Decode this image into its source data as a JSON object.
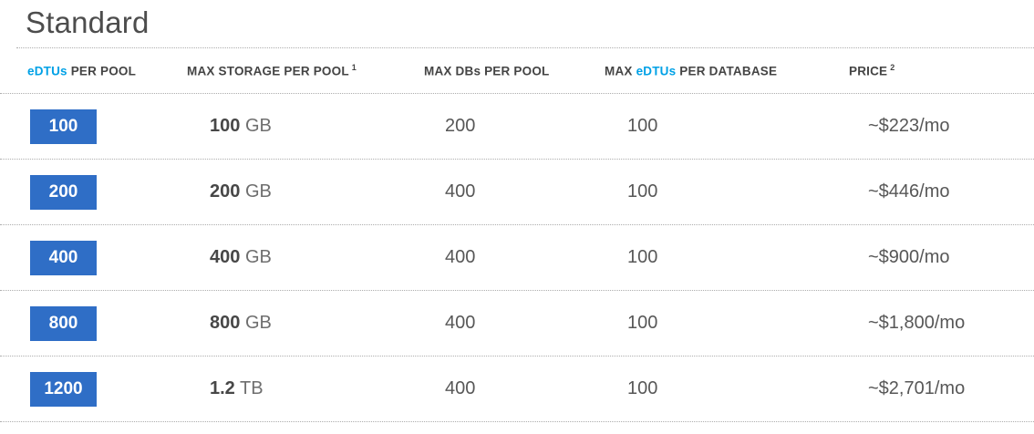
{
  "title": "Standard",
  "colors": {
    "badge_blue": "#2f6ec6",
    "accent_blue": "#00a1e6",
    "header_text": "#444444",
    "value_text": "#575757",
    "divider": "#adadad"
  },
  "table": {
    "columns": [
      {
        "pre": "",
        "accent": "eDTUs",
        "post": " PER POOL",
        "sup": ""
      },
      {
        "pre": "MAX STORAGE PER POOL",
        "accent": "",
        "post": "",
        "sup": "1"
      },
      {
        "pre": "MAX DBs PER POOL",
        "accent": "",
        "post": "",
        "sup": ""
      },
      {
        "pre": "MAX ",
        "accent": "eDTUs",
        "post": " PER DATABASE",
        "sup": ""
      },
      {
        "pre": "PRICE",
        "accent": "",
        "post": "",
        "sup": "2"
      }
    ],
    "rows": [
      {
        "edtus": "100",
        "storage_num": "100",
        "storage_unit": "GB",
        "max_dbs": "200",
        "max_edtus_per_db": "100",
        "price": "~$223/mo"
      },
      {
        "edtus": "200",
        "storage_num": "200",
        "storage_unit": "GB",
        "max_dbs": "400",
        "max_edtus_per_db": "100",
        "price": "~$446/mo"
      },
      {
        "edtus": "400",
        "storage_num": "400",
        "storage_unit": "GB",
        "max_dbs": "400",
        "max_edtus_per_db": "100",
        "price": "~$900/mo"
      },
      {
        "edtus": "800",
        "storage_num": "800",
        "storage_unit": "GB",
        "max_dbs": "400",
        "max_edtus_per_db": "100",
        "price": "~$1,800/mo"
      },
      {
        "edtus": "1200",
        "storage_num": "1.2",
        "storage_unit": "TB",
        "max_dbs": "400",
        "max_edtus_per_db": "100",
        "price": "~$2,701/mo"
      }
    ]
  }
}
